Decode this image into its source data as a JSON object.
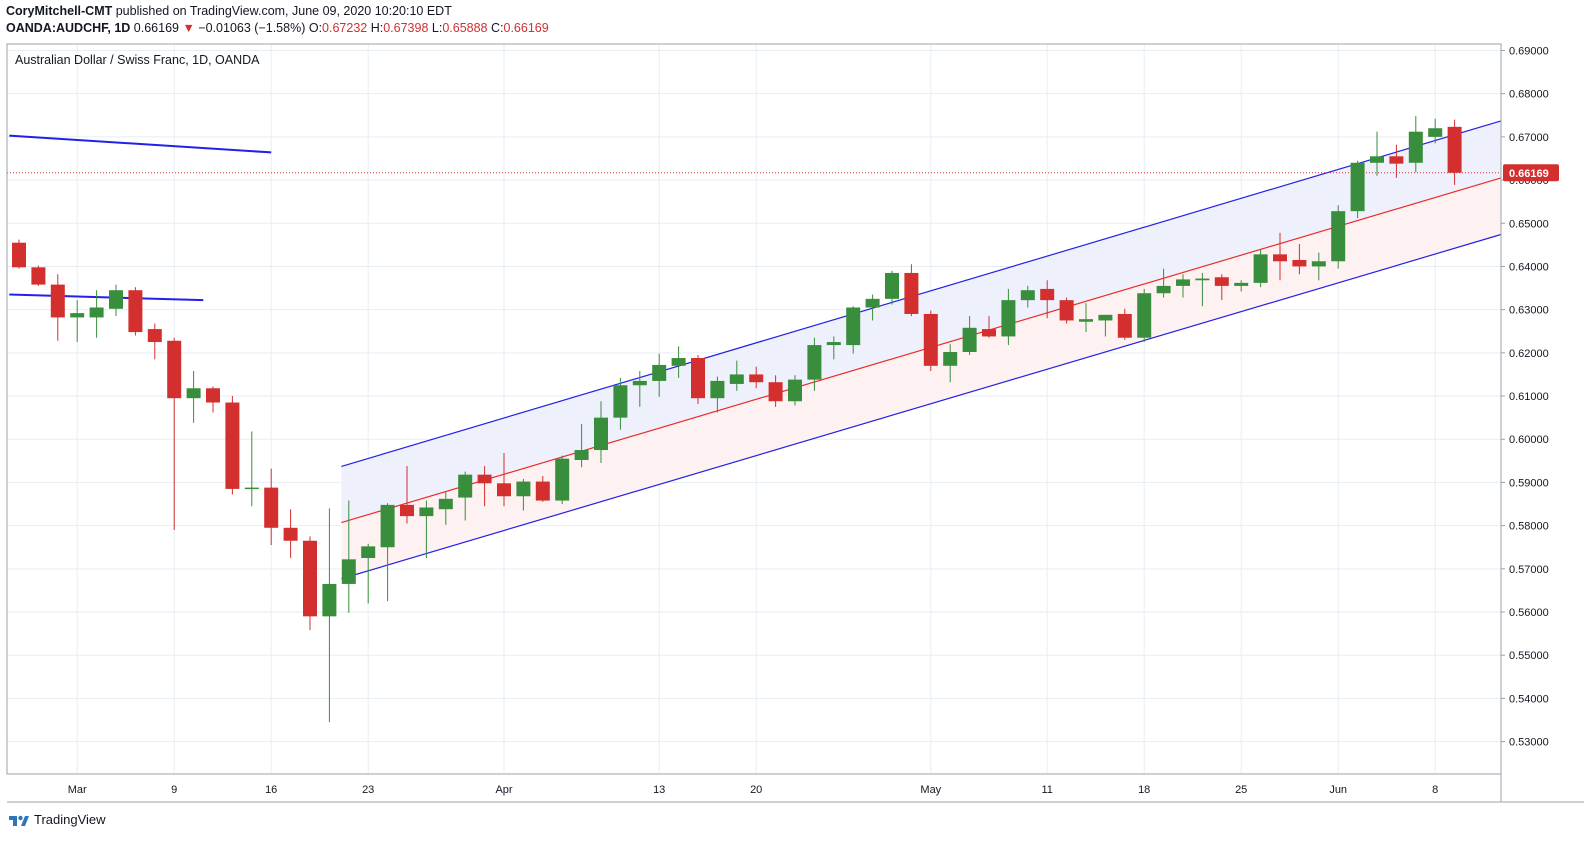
{
  "header": {
    "author": "CoryMitchell-CMT",
    "published": "published on TradingView.com, June 09, 2020 10:20:10 EDT",
    "symbol": "OANDA:AUDCHF, 1D",
    "last": "0.66169",
    "arrow": "▼",
    "change": "−0.01063 (−1.58%)",
    "o_label": "O:",
    "o_value": "0.67232",
    "h_label": "H:",
    "h_value": "0.67398",
    "l_label": "L:",
    "l_value": "0.65888",
    "c_label": "C:",
    "c_value": "0.66169"
  },
  "footer": {
    "brand": "TradingView",
    "logo_icon": "tradingview-logo-icon"
  },
  "colors": {
    "up": "#388e3c",
    "down": "#d32f2f",
    "channel": "#2121e8",
    "midline": "#ef2a2a",
    "upper_fill": "#eef0fb",
    "lower_fill": "#fdf1f1",
    "grid": "#e6eef4",
    "price_line": "#d32f2f"
  },
  "chart_data": {
    "type": "candlestick",
    "title": "Australian Dollar / Swiss Franc, 1D, OANDA",
    "ylim": [
      0.5225,
      0.6915
    ],
    "y_ticks": [
      "0.69000",
      "0.68000",
      "0.67000",
      "0.66000",
      "0.65000",
      "0.64000",
      "0.63000",
      "0.62000",
      "0.61000",
      "0.60000",
      "0.59000",
      "0.58000",
      "0.57000",
      "0.56000",
      "0.55000",
      "0.54000",
      "0.53000"
    ],
    "x_ticks": [
      {
        "label": "Mar",
        "index": 3
      },
      {
        "label": "9",
        "index": 8
      },
      {
        "label": "16",
        "index": 13
      },
      {
        "label": "23",
        "index": 18
      },
      {
        "label": "Apr",
        "index": 25
      },
      {
        "label": "13",
        "index": 33
      },
      {
        "label": "20",
        "index": 38
      },
      {
        "label": "May",
        "index": 47
      },
      {
        "label": "11",
        "index": 53
      },
      {
        "label": "18",
        "index": 58
      },
      {
        "label": "25",
        "index": 63
      },
      {
        "label": "Jun",
        "index": 68
      },
      {
        "label": "8",
        "index": 73
      }
    ],
    "last_price": "0.66169",
    "last_value": 0.66169,
    "candles": [
      {
        "o": 0.6455,
        "h": 0.6462,
        "l": 0.6395,
        "c": 0.6398
      },
      {
        "o": 0.6398,
        "h": 0.6402,
        "l": 0.6355,
        "c": 0.6358
      },
      {
        "o": 0.6358,
        "h": 0.6382,
        "l": 0.6228,
        "c": 0.6282
      },
      {
        "o": 0.6282,
        "h": 0.6322,
        "l": 0.6225,
        "c": 0.6292
      },
      {
        "o": 0.6282,
        "h": 0.6345,
        "l": 0.6235,
        "c": 0.6305
      },
      {
        "o": 0.6302,
        "h": 0.6358,
        "l": 0.6285,
        "c": 0.6345
      },
      {
        "o": 0.6345,
        "h": 0.6352,
        "l": 0.624,
        "c": 0.6248
      },
      {
        "o": 0.6255,
        "h": 0.6268,
        "l": 0.6185,
        "c": 0.6225
      },
      {
        "o": 0.6228,
        "h": 0.6235,
        "l": 0.579,
        "c": 0.6095
      },
      {
        "o": 0.6095,
        "h": 0.6158,
        "l": 0.6038,
        "c": 0.6118
      },
      {
        "o": 0.6118,
        "h": 0.6122,
        "l": 0.6062,
        "c": 0.6085
      },
      {
        "o": 0.6085,
        "h": 0.61,
        "l": 0.5872,
        "c": 0.5885
      },
      {
        "o": 0.5885,
        "h": 0.6018,
        "l": 0.5845,
        "c": 0.5888
      },
      {
        "o": 0.5888,
        "h": 0.5932,
        "l": 0.5755,
        "c": 0.5795
      },
      {
        "o": 0.5795,
        "h": 0.5838,
        "l": 0.5725,
        "c": 0.5765
      },
      {
        "o": 0.5765,
        "h": 0.5775,
        "l": 0.5558,
        "c": 0.559
      },
      {
        "o": 0.559,
        "h": 0.584,
        "l": 0.5345,
        "c": 0.5665
      },
      {
        "o": 0.5665,
        "h": 0.5858,
        "l": 0.5598,
        "c": 0.5722
      },
      {
        "o": 0.5725,
        "h": 0.5758,
        "l": 0.562,
        "c": 0.5752
      },
      {
        "o": 0.575,
        "h": 0.5852,
        "l": 0.5625,
        "c": 0.5848
      },
      {
        "o": 0.5848,
        "h": 0.5938,
        "l": 0.5805,
        "c": 0.5822
      },
      {
        "o": 0.5822,
        "h": 0.5858,
        "l": 0.5725,
        "c": 0.5842
      },
      {
        "o": 0.5838,
        "h": 0.5878,
        "l": 0.5802,
        "c": 0.5862
      },
      {
        "o": 0.5865,
        "h": 0.5925,
        "l": 0.5812,
        "c": 0.5918
      },
      {
        "o": 0.5918,
        "h": 0.5938,
        "l": 0.5845,
        "c": 0.5898
      },
      {
        "o": 0.5898,
        "h": 0.5968,
        "l": 0.5845,
        "c": 0.5868
      },
      {
        "o": 0.5868,
        "h": 0.5908,
        "l": 0.5835,
        "c": 0.5902
      },
      {
        "o": 0.5902,
        "h": 0.5915,
        "l": 0.5855,
        "c": 0.5858
      },
      {
        "o": 0.5858,
        "h": 0.5962,
        "l": 0.585,
        "c": 0.5955
      },
      {
        "o": 0.5952,
        "h": 0.6035,
        "l": 0.5935,
        "c": 0.5975
      },
      {
        "o": 0.5975,
        "h": 0.6088,
        "l": 0.5945,
        "c": 0.605
      },
      {
        "o": 0.605,
        "h": 0.6142,
        "l": 0.6022,
        "c": 0.6125
      },
      {
        "o": 0.6125,
        "h": 0.6158,
        "l": 0.6075,
        "c": 0.6135
      },
      {
        "o": 0.6135,
        "h": 0.6198,
        "l": 0.6098,
        "c": 0.6172
      },
      {
        "o": 0.617,
        "h": 0.6215,
        "l": 0.6142,
        "c": 0.6188
      },
      {
        "o": 0.6188,
        "h": 0.6195,
        "l": 0.6082,
        "c": 0.6095
      },
      {
        "o": 0.6095,
        "h": 0.6145,
        "l": 0.6062,
        "c": 0.6135
      },
      {
        "o": 0.6128,
        "h": 0.6182,
        "l": 0.6112,
        "c": 0.615
      },
      {
        "o": 0.615,
        "h": 0.6168,
        "l": 0.6118,
        "c": 0.6132
      },
      {
        "o": 0.6132,
        "h": 0.6148,
        "l": 0.6075,
        "c": 0.6088
      },
      {
        "o": 0.6088,
        "h": 0.6148,
        "l": 0.6078,
        "c": 0.6138
      },
      {
        "o": 0.6138,
        "h": 0.6235,
        "l": 0.6112,
        "c": 0.6218
      },
      {
        "o": 0.6218,
        "h": 0.6238,
        "l": 0.6185,
        "c": 0.6225
      },
      {
        "o": 0.6218,
        "h": 0.6308,
        "l": 0.6198,
        "c": 0.6305
      },
      {
        "o": 0.6305,
        "h": 0.6335,
        "l": 0.6275,
        "c": 0.6325
      },
      {
        "o": 0.6325,
        "h": 0.639,
        "l": 0.6312,
        "c": 0.6385
      },
      {
        "o": 0.6385,
        "h": 0.6405,
        "l": 0.6285,
        "c": 0.629
      },
      {
        "o": 0.629,
        "h": 0.6298,
        "l": 0.6158,
        "c": 0.617
      },
      {
        "o": 0.617,
        "h": 0.622,
        "l": 0.6132,
        "c": 0.6202
      },
      {
        "o": 0.6202,
        "h": 0.6285,
        "l": 0.6195,
        "c": 0.6258
      },
      {
        "o": 0.6255,
        "h": 0.6285,
        "l": 0.6235,
        "c": 0.6238
      },
      {
        "o": 0.6238,
        "h": 0.6348,
        "l": 0.6218,
        "c": 0.6322
      },
      {
        "o": 0.6322,
        "h": 0.6355,
        "l": 0.6305,
        "c": 0.6345
      },
      {
        "o": 0.6348,
        "h": 0.6368,
        "l": 0.628,
        "c": 0.6322
      },
      {
        "o": 0.6322,
        "h": 0.6328,
        "l": 0.6268,
        "c": 0.6275
      },
      {
        "o": 0.6272,
        "h": 0.6315,
        "l": 0.6248,
        "c": 0.6278
      },
      {
        "o": 0.6275,
        "h": 0.6288,
        "l": 0.6238,
        "c": 0.6288
      },
      {
        "o": 0.629,
        "h": 0.6302,
        "l": 0.623,
        "c": 0.6235
      },
      {
        "o": 0.6235,
        "h": 0.6348,
        "l": 0.6225,
        "c": 0.6338
      },
      {
        "o": 0.6338,
        "h": 0.6395,
        "l": 0.6328,
        "c": 0.6355
      },
      {
        "o": 0.6355,
        "h": 0.6382,
        "l": 0.6328,
        "c": 0.637
      },
      {
        "o": 0.6368,
        "h": 0.6385,
        "l": 0.6308,
        "c": 0.6372
      },
      {
        "o": 0.6375,
        "h": 0.6382,
        "l": 0.6322,
        "c": 0.6355
      },
      {
        "o": 0.6355,
        "h": 0.6368,
        "l": 0.6342,
        "c": 0.6362
      },
      {
        "o": 0.6362,
        "h": 0.6438,
        "l": 0.6352,
        "c": 0.6428
      },
      {
        "o": 0.6428,
        "h": 0.6478,
        "l": 0.6368,
        "c": 0.6412
      },
      {
        "o": 0.6415,
        "h": 0.6452,
        "l": 0.6382,
        "c": 0.64
      },
      {
        "o": 0.64,
        "h": 0.6432,
        "l": 0.6368,
        "c": 0.6412
      },
      {
        "o": 0.6412,
        "h": 0.6542,
        "l": 0.6395,
        "c": 0.6528
      },
      {
        "o": 0.6528,
        "h": 0.6645,
        "l": 0.6512,
        "c": 0.664
      },
      {
        "o": 0.664,
        "h": 0.6712,
        "l": 0.661,
        "c": 0.6655
      },
      {
        "o": 0.6655,
        "h": 0.6682,
        "l": 0.6605,
        "c": 0.6638
      },
      {
        "o": 0.664,
        "h": 0.6748,
        "l": 0.6618,
        "c": 0.6712
      },
      {
        "o": 0.67,
        "h": 0.6742,
        "l": 0.6685,
        "c": 0.672
      },
      {
        "o": 0.67232,
        "h": 0.67398,
        "l": 0.65888,
        "c": 0.66169
      }
    ],
    "lines": [
      {
        "name": "old-descending-trendline-upper",
        "from": {
          "i": -0.5,
          "v": 0.6703
        },
        "to": {
          "i": 13,
          "v": 0.6664
        }
      },
      {
        "name": "old-descending-trendline-lower",
        "from": {
          "i": -0.5,
          "v": 0.6335
        },
        "to": {
          "i": 9.5,
          "v": 0.6322
        }
      }
    ],
    "channel": {
      "start_index": 16,
      "upper": {
        "from": 0.5937,
        "to": 0.6737
      },
      "middle": {
        "from": 0.5807,
        "to": 0.6605
      },
      "lower": {
        "from": 0.5677,
        "to": 0.6474
      }
    }
  }
}
